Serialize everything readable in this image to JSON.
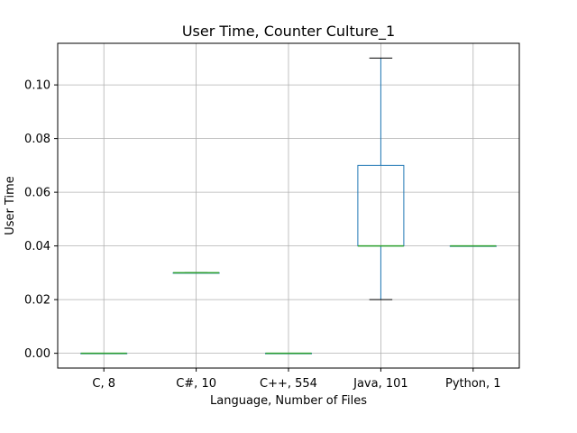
{
  "chart_data": {
    "type": "box",
    "title": "User Time, Counter Culture_1",
    "xlabel": "Language, Number of Files",
    "ylabel": "User Time",
    "ylim": [
      -0.0055,
      0.1155
    ],
    "yticks": [
      0.0,
      0.02,
      0.04,
      0.06,
      0.08,
      0.1
    ],
    "ytick_labels": [
      "0.00",
      "0.02",
      "0.04",
      "0.06",
      "0.08",
      "0.10"
    ],
    "grid": true,
    "categories": [
      "C, 8",
      "C#, 10",
      "C++, 554",
      "Java, 101",
      "Python, 1"
    ],
    "boxes": [
      {
        "whisker_low": 0.0,
        "q1": 0.0,
        "median": 0.0,
        "q3": 0.0,
        "whisker_high": 0.0
      },
      {
        "whisker_low": 0.03,
        "q1": 0.03,
        "median": 0.03,
        "q3": 0.03,
        "whisker_high": 0.03
      },
      {
        "whisker_low": 0.0,
        "q1": 0.0,
        "median": 0.0,
        "q3": 0.0,
        "whisker_high": 0.0
      },
      {
        "whisker_low": 0.02,
        "q1": 0.04,
        "median": 0.04,
        "q3": 0.07,
        "whisker_high": 0.11
      },
      {
        "whisker_low": 0.04,
        "q1": 0.04,
        "median": 0.04,
        "q3": 0.04,
        "whisker_high": 0.04
      }
    ],
    "colors": {
      "box": "#1f77b4",
      "median": "#2ca02c",
      "whisker": "#1f77b4",
      "cap": "#000000",
      "grid": "#b0b0b0"
    }
  }
}
